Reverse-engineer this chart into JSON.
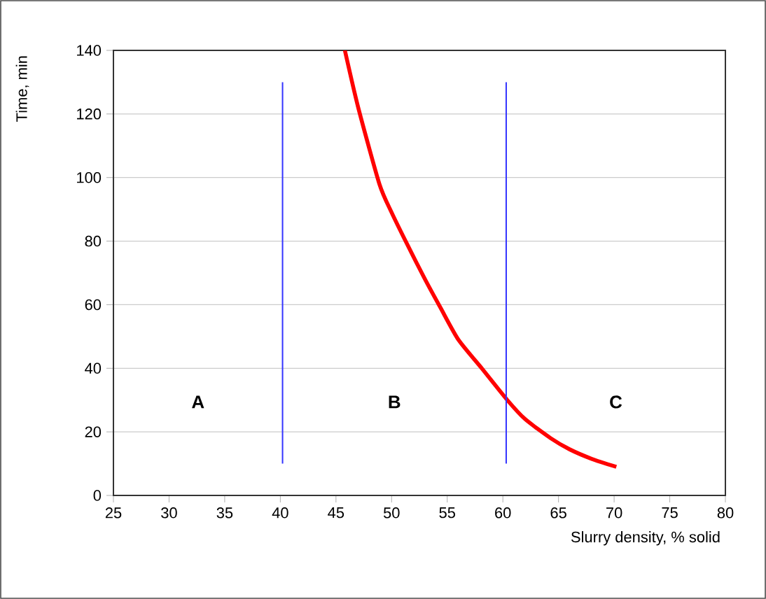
{
  "chart_data": {
    "type": "line",
    "xlabel": "Slurry density, % solid",
    "ylabel": "Time, min",
    "xlim": [
      25,
      80
    ],
    "ylim": [
      0,
      140
    ],
    "xticks": [
      25,
      30,
      35,
      40,
      45,
      50,
      55,
      60,
      65,
      70,
      75,
      80
    ],
    "yticks": [
      0,
      20,
      40,
      60,
      80,
      100,
      120,
      140
    ],
    "grid": "y",
    "marker": "none",
    "series": [
      {
        "color": "#ff0000",
        "x": [
          45.8,
          47,
          48.9,
          50,
          51.4,
          53,
          54.4,
          56,
          58.1,
          60.4,
          62,
          64.3,
          66,
          68,
          70.2
        ],
        "values": [
          140,
          122,
          98,
          89,
          79,
          68,
          59,
          49,
          40,
          30,
          24,
          18,
          14.5,
          11.5,
          9
        ]
      },
      {
        "color": "#3333ff",
        "x": [
          40.2,
          40.2
        ],
        "values": [
          10,
          130
        ]
      },
      {
        "color": "#3333ff",
        "x": [
          60.3,
          60.3
        ],
        "values": [
          10,
          130
        ]
      }
    ],
    "annotations": [
      "A",
      "B",
      "C"
    ]
  }
}
